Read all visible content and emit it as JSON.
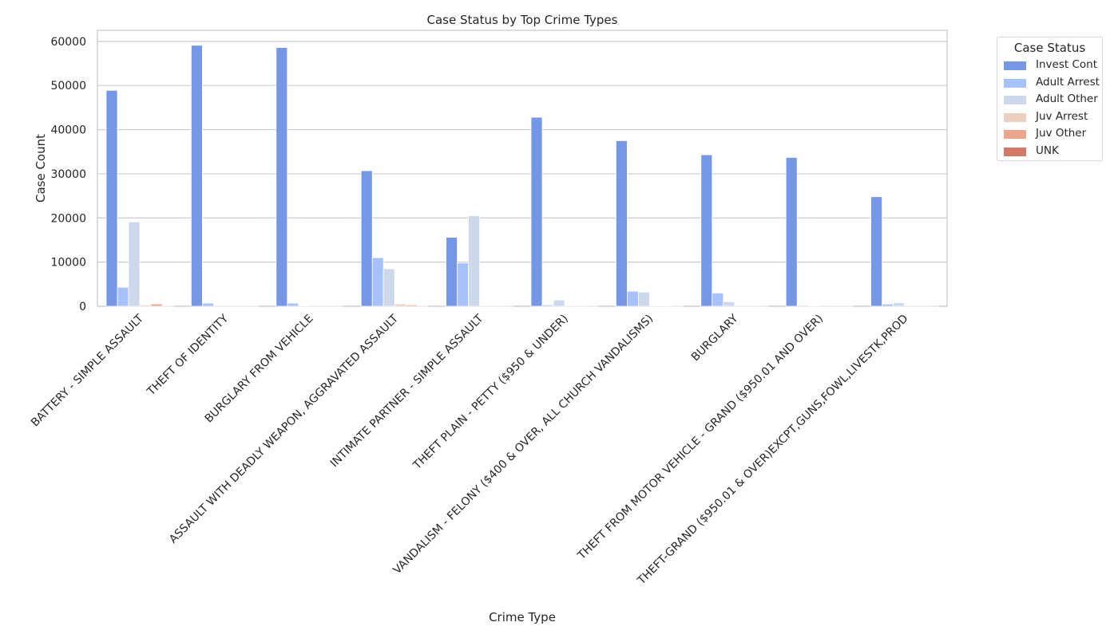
{
  "chart_data": {
    "type": "bar",
    "title": "Case Status by Top Crime Types",
    "xlabel": "Crime Type",
    "ylabel": "Case Count",
    "ylim": [
      0,
      62500
    ],
    "yticks": [
      "0",
      "10000",
      "20000",
      "30000",
      "40000",
      "50000",
      "60000"
    ],
    "grid": true,
    "legend_title": "Case Status",
    "legend_position": "outside-top-right",
    "categories": [
      "BATTERY - SIMPLE ASSAULT",
      "THEFT OF IDENTITY",
      "BURGLARY FROM VEHICLE",
      "ASSAULT WITH DEADLY WEAPON, AGGRAVATED ASSAULT",
      "INTIMATE PARTNER - SIMPLE ASSAULT",
      "THEFT PLAIN - PETTY ($950 & UNDER)",
      "VANDALISM - FELONY ($400 & OVER, ALL CHURCH VANDALISMS)",
      "BURGLARY",
      "THEFT FROM MOTOR VEHICLE - GRAND ($950.01 AND OVER)",
      "THEFT-GRAND ($950.01 & OVER)EXCPT,GUNS,FOWL,LIVESTK,PROD"
    ],
    "series": [
      {
        "name": "Invest Cont",
        "color": "#7696e6",
        "values": [
          48900,
          59100,
          58600,
          30700,
          15600,
          42800,
          37500,
          34300,
          33700,
          24800
        ]
      },
      {
        "name": "Adult Arrest",
        "color": "#a7c2fa",
        "values": [
          4300,
          700,
          700,
          11000,
          9800,
          300,
          3400,
          3000,
          200,
          500
        ]
      },
      {
        "name": "Adult Other",
        "color": "#cdd9eb",
        "values": [
          19100,
          200,
          100,
          8500,
          20500,
          1400,
          3200,
          1000,
          150,
          800
        ]
      },
      {
        "name": "Juv Arrest",
        "color": "#eccfc0",
        "values": [
          300,
          10,
          10,
          500,
          30,
          50,
          100,
          50,
          5,
          20
        ]
      },
      {
        "name": "Juv Other",
        "color": "#eda58b",
        "values": [
          500,
          10,
          10,
          300,
          50,
          50,
          100,
          50,
          5,
          20
        ]
      },
      {
        "name": "UNK",
        "color": "#d47868",
        "values": [
          20,
          5,
          5,
          20,
          10,
          10,
          10,
          10,
          5,
          5
        ]
      }
    ]
  }
}
